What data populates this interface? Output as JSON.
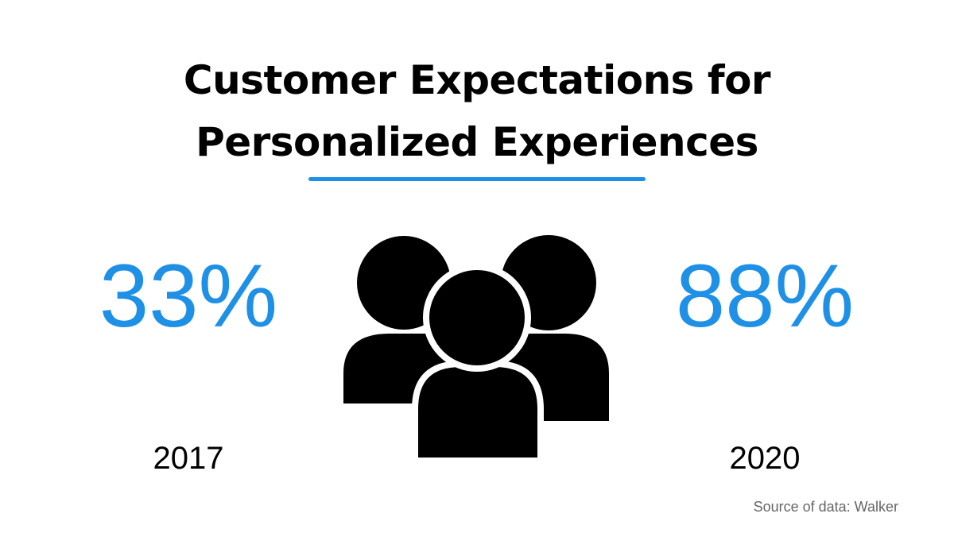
{
  "header": {
    "title_lines": [
      "Customer Expectations for",
      "Personalized Experiences"
    ]
  },
  "stats": [
    {
      "value": "33%",
      "year": "2017"
    },
    {
      "value": "88%",
      "year": "2020"
    }
  ],
  "footer": {
    "source": "Source of data: Walker"
  }
}
